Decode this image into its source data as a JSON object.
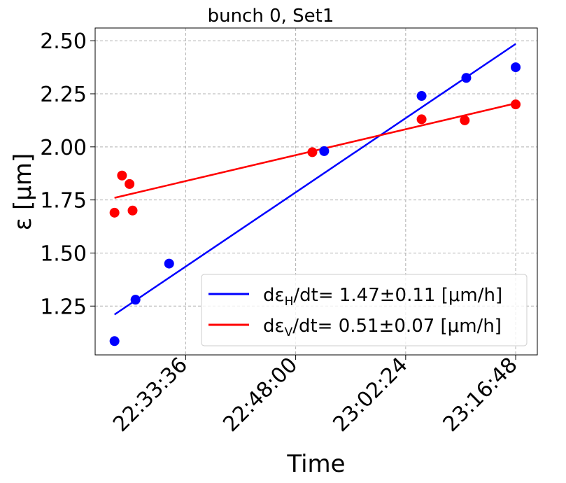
{
  "chart_data": {
    "type": "scatter",
    "title": "bunch 0, Set1",
    "xlabel": "Time",
    "ylabel": "ε [μm]",
    "x_ticks": [
      "22:33:36",
      "22:48:00",
      "23:02:24",
      "23:16:48"
    ],
    "y_ticks": [
      "1.25",
      "1.50",
      "1.75",
      "2.00",
      "2.25",
      "2.50"
    ],
    "xlim": [
      "22:21:45",
      "23:19:38"
    ],
    "ylim": [
      1.02,
      2.56
    ],
    "grid": true,
    "legend_position": "lower-right",
    "series": [
      {
        "name_parts": [
          "dε",
          "H",
          "/dt= 1.47±0.11 [μm/h]"
        ],
        "color": "#0000ff",
        "points": [
          {
            "x": "22:24:17",
            "y": 1.085
          },
          {
            "x": "22:27:02",
            "y": 1.28
          },
          {
            "x": "22:31:26",
            "y": 1.45
          },
          {
            "x": "22:51:44",
            "y": 1.98
          },
          {
            "x": "23:04:29",
            "y": 2.24
          },
          {
            "x": "23:10:20",
            "y": 2.325
          },
          {
            "x": "23:16:48",
            "y": 2.375
          }
        ],
        "fit": {
          "x": [
            "22:24:17",
            "23:16:48"
          ],
          "y": [
            1.21,
            2.485
          ]
        }
      },
      {
        "name_parts": [
          "dε",
          "V",
          "/dt= 0.51±0.07 [μm/h]"
        ],
        "color": "#ff0000",
        "points": [
          {
            "x": "22:24:17",
            "y": 1.69
          },
          {
            "x": "22:25:16",
            "y": 1.865
          },
          {
            "x": "22:26:15",
            "y": 1.825
          },
          {
            "x": "22:26:39",
            "y": 1.7
          },
          {
            "x": "22:50:11",
            "y": 1.975
          },
          {
            "x": "23:04:29",
            "y": 2.13
          },
          {
            "x": "23:10:08",
            "y": 2.125
          },
          {
            "x": "23:16:48",
            "y": 2.2
          }
        ],
        "fit": {
          "x": [
            "22:24:17",
            "23:16:48"
          ],
          "y": [
            1.76,
            2.205
          ]
        }
      }
    ]
  }
}
